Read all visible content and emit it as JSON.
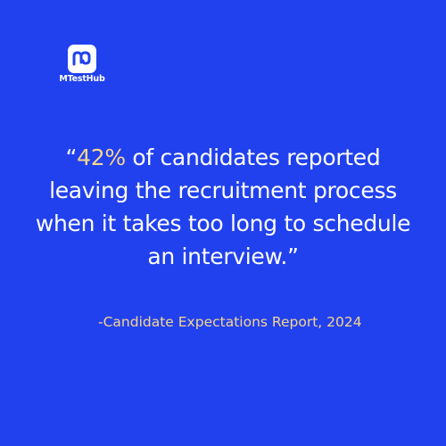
{
  "brand": {
    "name": "MTestHub"
  },
  "quote": {
    "open": "“",
    "highlight": "42%",
    "lines": [
      "of candidates reported",
      "leaving the recruitment process",
      "when it takes too long to schedule",
      "an interview.”"
    ]
  },
  "attribution": "-Candidate Expectations Report, 2024"
}
